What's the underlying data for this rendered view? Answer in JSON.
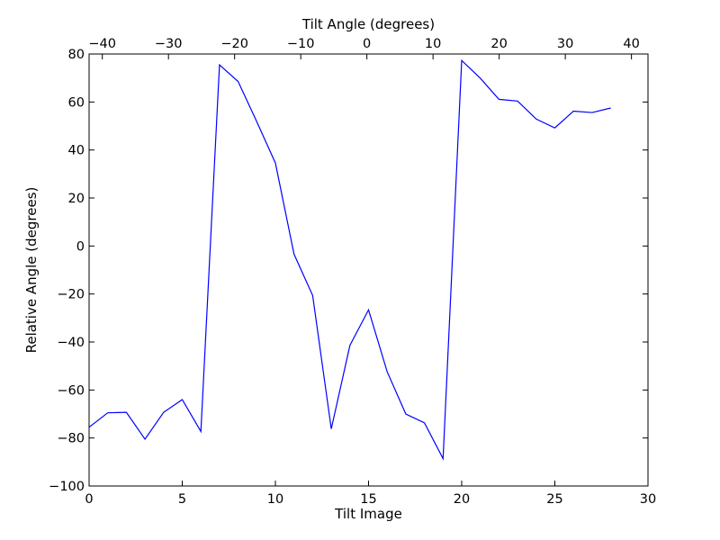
{
  "chart_data": {
    "type": "line",
    "title": "",
    "xlabel": "Tilt Image",
    "ylabel": "Relative Angle (degrees)",
    "top_xlabel": "Tilt Angle (degrees)",
    "xlim": [
      0,
      30
    ],
    "ylim": [
      -100,
      80
    ],
    "top_xlim": [
      -42,
      42.5
    ],
    "x_ticks": [
      0,
      5,
      10,
      15,
      20,
      25,
      30
    ],
    "x_tick_labels": [
      "0",
      "5",
      "10",
      "15",
      "20",
      "25",
      "30"
    ],
    "y_ticks": [
      -100,
      -80,
      -60,
      -40,
      -20,
      0,
      20,
      40,
      60,
      80
    ],
    "y_tick_labels": [
      "−100",
      "−80",
      "−60",
      "−40",
      "−20",
      "0",
      "20",
      "40",
      "60",
      "80"
    ],
    "top_ticks": [
      -40,
      -30,
      -20,
      -10,
      0,
      10,
      20,
      30,
      40
    ],
    "top_tick_labels": [
      "−40",
      "−30",
      "−20",
      "−10",
      "0",
      "10",
      "20",
      "30",
      "40"
    ],
    "grid": false,
    "series": [
      {
        "color": "#0000ff",
        "x": [
          0,
          1,
          2,
          3,
          4,
          5,
          6,
          7,
          8,
          9,
          10,
          11,
          12,
          13,
          14,
          15,
          16,
          17,
          18,
          19,
          20,
          21,
          22,
          23,
          24,
          25,
          26,
          27,
          28
        ],
        "values": [
          -75.5,
          -69.5,
          -69.3,
          -80.5,
          -69.3,
          -64.0,
          -77.3,
          75.5,
          68.5,
          51.8,
          34.6,
          -3.4,
          -20.6,
          -76.2,
          -41.4,
          -26.6,
          -52.4,
          -70.0,
          -73.7,
          -88.6,
          77.3,
          69.9,
          61.1,
          60.4,
          52.9,
          49.2,
          56.2,
          55.6,
          57.5
        ]
      }
    ]
  }
}
